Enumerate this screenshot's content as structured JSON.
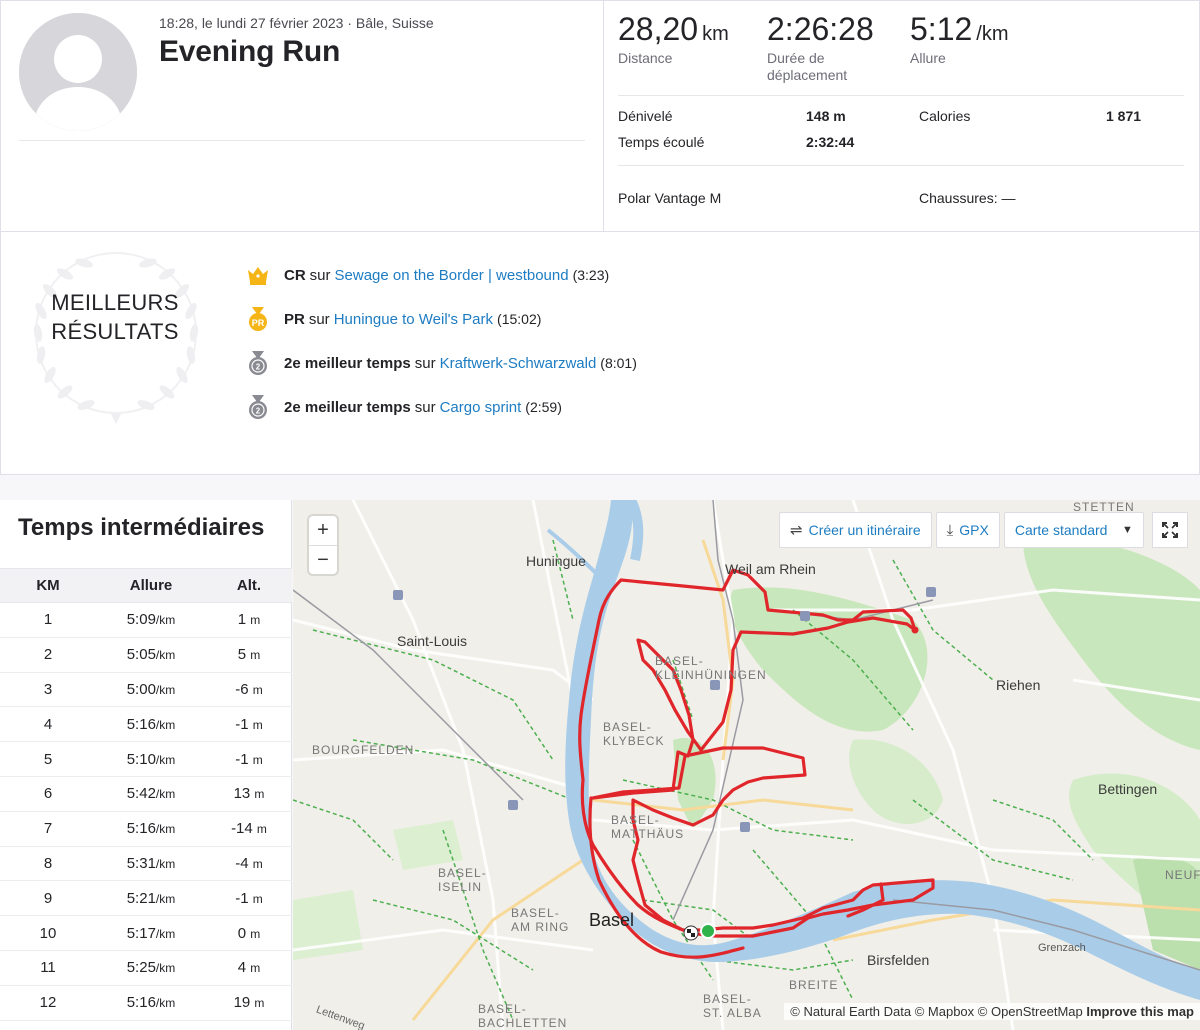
{
  "activity": {
    "meta": "18:28, le lundi 27 février 2023 · Bâle, Suisse",
    "title": "Evening Run"
  },
  "stats": {
    "distance": {
      "value": "28,20",
      "unit": "km",
      "label": "Distance"
    },
    "moving_time": {
      "value": "2:26:28",
      "label_line1": "Durée de",
      "label_line2": "déplacement"
    },
    "pace": {
      "value": "5:12",
      "unit": "/km",
      "label": "Allure"
    },
    "elevation_label": "Dénivelé",
    "elevation_value": "148 m",
    "calories_label": "Calories",
    "calories_value": "1 871",
    "elapsed_label": "Temps écoulé",
    "elapsed_value": "2:32:44",
    "device": "Polar Vantage M",
    "shoes": "Chaussures: —"
  },
  "achievements": {
    "heading_line1": "MEILLEURS",
    "heading_line2": "RÉSULTATS",
    "items": [
      {
        "badge": "CR",
        "sur": "sur",
        "segment": "Sewage on the Border | westbound",
        "time": "(3:23)",
        "icon": "crown-icon"
      },
      {
        "badge": "PR",
        "sur": "sur",
        "segment": "Huningue to Weil's Park",
        "time": "(15:02)",
        "icon": "pr-medal-icon"
      },
      {
        "badge": "2e meilleur temps",
        "sur": "sur",
        "segment": "Kraftwerk-Schwarzwald",
        "time": "(8:01)",
        "icon": "second-medal-icon"
      },
      {
        "badge": "2e meilleur temps",
        "sur": "sur",
        "segment": "Cargo sprint",
        "time": "(2:59)",
        "icon": "second-medal-icon"
      }
    ]
  },
  "splits": {
    "title": "Temps intermédiaires",
    "headers": [
      "KM",
      "Allure",
      "Alt."
    ],
    "pace_unit": "/km",
    "alt_unit": "m",
    "rows": [
      {
        "km": "1",
        "pace": "5:09",
        "alt": "1"
      },
      {
        "km": "2",
        "pace": "5:05",
        "alt": "5"
      },
      {
        "km": "3",
        "pace": "5:00",
        "alt": "-6"
      },
      {
        "km": "4",
        "pace": "5:16",
        "alt": "-1"
      },
      {
        "km": "5",
        "pace": "5:10",
        "alt": "-1"
      },
      {
        "km": "6",
        "pace": "5:42",
        "alt": "13"
      },
      {
        "km": "7",
        "pace": "5:16",
        "alt": "-14"
      },
      {
        "km": "8",
        "pace": "5:31",
        "alt": "-4"
      },
      {
        "km": "9",
        "pace": "5:21",
        "alt": "-1"
      },
      {
        "km": "10",
        "pace": "5:17",
        "alt": "0"
      },
      {
        "km": "11",
        "pace": "5:25",
        "alt": "4"
      },
      {
        "km": "12",
        "pace": "5:16",
        "alt": "19"
      }
    ]
  },
  "map": {
    "zoom_in": "+",
    "zoom_out": "−",
    "create_route": "Créer un itinéraire",
    "gpx": "GPX",
    "map_style": "Carte standard",
    "labels": {
      "huningue": "Huningue",
      "weil": "Weil am Rhein",
      "saint_louis": "Saint-Louis",
      "riehen": "Riehen",
      "bettingen": "Bettingen",
      "birsfelden": "Birsfelden",
      "grenzach": "Grenzach",
      "basel": "Basel",
      "kleinhueningen_1": "BASEL-",
      "kleinhueningen_2": "KLEINHÜNINGEN",
      "klybeck_1": "BASEL-",
      "klybeck_2": "KLYBECK",
      "matthaeus_1": "BASEL-",
      "matthaeus_2": "MATTHÄUS",
      "iselin_1": "BASEL-",
      "iselin_2": "ISELIN",
      "amring_1": "BASEL-",
      "amring_2": "AM RING",
      "bourgfelden": "BOURGFELDEN",
      "breite": "BREITE",
      "stalban_1": "BASEL-",
      "stalban_2": "ST. ALBA",
      "stetten": "STETTEN",
      "neufe": "NEUFE",
      "lettenweg": "Lettenweg",
      "basel_bach_1": "BASEL-",
      "basel_bach_2": "BACHLETTEN"
    },
    "attribution_plain": "© Natural Earth Data © Mapbox © OpenStreetMap",
    "attribution_bold": "Improve this map",
    "route_color": "#e0262b",
    "river_color": "#a9cde9",
    "park_color": "#c7e6bb"
  }
}
